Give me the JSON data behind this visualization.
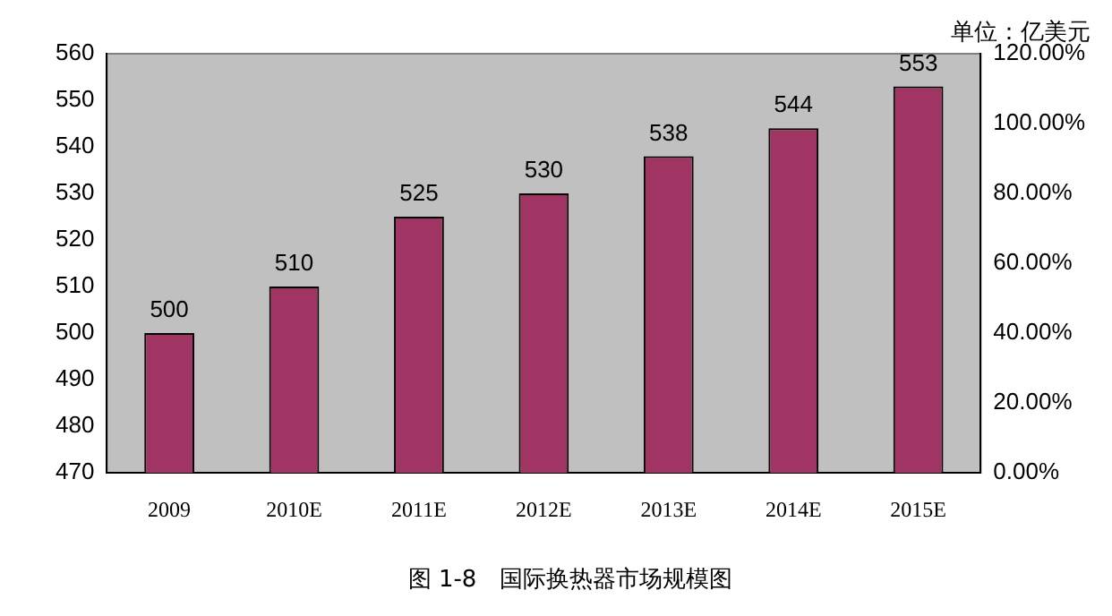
{
  "chart_data": {
    "type": "bar",
    "title": "图 1-8　国际换热器市场规模图",
    "annotations": [
      "单位：亿美元"
    ],
    "categories": [
      "2009",
      "2010E",
      "2011E",
      "2012E",
      "2013E",
      "2014E",
      "2015E"
    ],
    "series": [
      {
        "color": "#a03462",
        "values": [
          500,
          510,
          525,
          530,
          538,
          544,
          553
        ]
      }
    ],
    "ylim": [
      470,
      560
    ],
    "yticks": [
      470,
      480,
      490,
      500,
      510,
      520,
      530,
      540,
      550,
      560
    ],
    "y2lim": [
      0,
      120
    ],
    "y2ticks": [
      {
        "value": 0,
        "label": "0.00%"
      },
      {
        "value": 20,
        "label": "20.00%"
      },
      {
        "value": 40,
        "label": "40.00%"
      },
      {
        "value": 60,
        "label": "60.00%"
      },
      {
        "value": 80,
        "label": "80.00%"
      },
      {
        "value": 100,
        "label": "100.00%"
      },
      {
        "value": 120,
        "label": "120.00%"
      }
    ],
    "data_labels": true,
    "grid": false,
    "legend": false
  }
}
